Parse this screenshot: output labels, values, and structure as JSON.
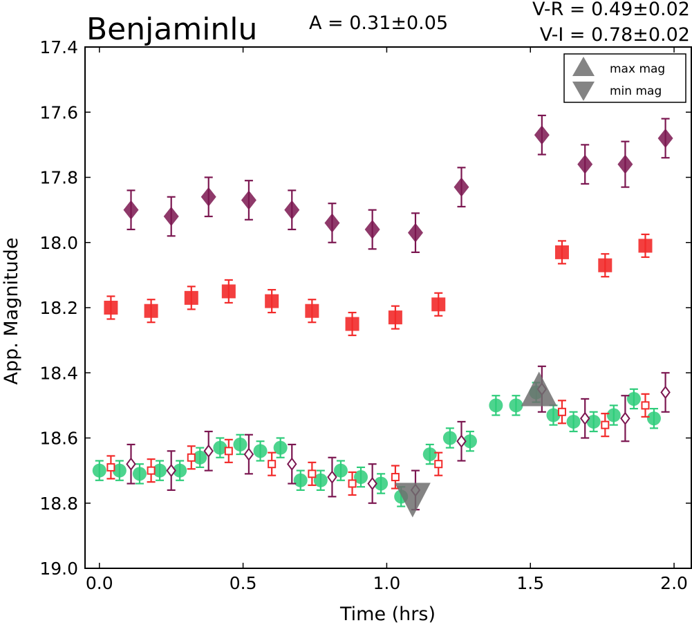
{
  "chart_data": {
    "type": "scatter",
    "title": "Benjaminlu",
    "amplitude_text": "A  = 0.31±0.05",
    "color_index_text": [
      "V-R = 0.49±0.02",
      "V-I  = 0.78±0.02"
    ],
    "xlabel": "Time (hrs)",
    "ylabel": "App. Magnitude",
    "xlim": [
      -0.05,
      2.06
    ],
    "ylim": [
      19.0,
      17.4
    ],
    "y_inverted": true,
    "x_ticks": [
      "0.0",
      "0.5",
      "1.0",
      "1.5",
      "2.0"
    ],
    "y_ticks": [
      "17.4",
      "17.6",
      "17.8",
      "18.0",
      "18.2",
      "18.4",
      "18.6",
      "18.8",
      "19.0"
    ],
    "legend": {
      "position": "top-right",
      "entries": [
        {
          "label": "max mag",
          "marker": "triangle-up"
        },
        {
          "label": "min mag",
          "marker": "triangle-down"
        }
      ]
    },
    "colors": {
      "i_band": "#7b1650",
      "r_band": "#f22a2a",
      "v_band": "#2ecc7a",
      "extrema": "#6e6e6e"
    },
    "series": [
      {
        "marker": "diamond-filled",
        "color": "#7b1650",
        "points": [
          [
            0.11,
            17.9,
            0.06
          ],
          [
            0.25,
            17.92,
            0.06
          ],
          [
            0.38,
            17.86,
            0.06
          ],
          [
            0.52,
            17.87,
            0.06
          ],
          [
            0.67,
            17.9,
            0.06
          ],
          [
            0.81,
            17.94,
            0.06
          ],
          [
            0.95,
            17.96,
            0.06
          ],
          [
            1.1,
            17.97,
            0.06
          ],
          [
            1.26,
            17.83,
            0.06
          ],
          [
            1.54,
            17.67,
            0.06
          ],
          [
            1.69,
            17.76,
            0.06
          ],
          [
            1.83,
            17.76,
            0.07
          ],
          [
            1.97,
            17.68,
            0.06
          ]
        ]
      },
      {
        "marker": "square-filled",
        "color": "#f22a2a",
        "points": [
          [
            0.04,
            18.2,
            0.035
          ],
          [
            0.18,
            18.21,
            0.035
          ],
          [
            0.32,
            18.17,
            0.035
          ],
          [
            0.45,
            18.15,
            0.035
          ],
          [
            0.6,
            18.18,
            0.035
          ],
          [
            0.74,
            18.21,
            0.035
          ],
          [
            0.88,
            18.25,
            0.035
          ],
          [
            1.03,
            18.23,
            0.035
          ],
          [
            1.18,
            18.19,
            0.035
          ],
          [
            1.61,
            18.03,
            0.035
          ],
          [
            1.76,
            18.07,
            0.035
          ],
          [
            1.9,
            18.01,
            0.035
          ]
        ]
      },
      {
        "marker": "circle-filled",
        "color": "#2ecc7a",
        "points": [
          [
            0.0,
            18.7,
            0.03
          ],
          [
            0.07,
            18.7,
            0.03
          ],
          [
            0.14,
            18.71,
            0.03
          ],
          [
            0.21,
            18.7,
            0.03
          ],
          [
            0.28,
            18.7,
            0.03
          ],
          [
            0.35,
            18.66,
            0.03
          ],
          [
            0.42,
            18.63,
            0.03
          ],
          [
            0.49,
            18.62,
            0.03
          ],
          [
            0.56,
            18.64,
            0.03
          ],
          [
            0.63,
            18.63,
            0.03
          ],
          [
            0.7,
            18.73,
            0.03
          ],
          [
            0.77,
            18.73,
            0.03
          ],
          [
            0.84,
            18.7,
            0.03
          ],
          [
            0.91,
            18.72,
            0.03
          ],
          [
            0.98,
            18.74,
            0.03
          ],
          [
            1.05,
            18.78,
            0.03
          ],
          [
            1.15,
            18.65,
            0.03
          ],
          [
            1.22,
            18.6,
            0.03
          ],
          [
            1.29,
            18.61,
            0.03
          ],
          [
            1.38,
            18.5,
            0.03
          ],
          [
            1.45,
            18.5,
            0.03
          ],
          [
            1.52,
            18.46,
            0.03
          ],
          [
            1.58,
            18.53,
            0.03
          ],
          [
            1.65,
            18.55,
            0.03
          ],
          [
            1.72,
            18.55,
            0.03
          ],
          [
            1.79,
            18.53,
            0.03
          ],
          [
            1.86,
            18.48,
            0.03
          ],
          [
            1.93,
            18.54,
            0.03
          ]
        ]
      },
      {
        "marker": "square-open",
        "color": "#f22a2a",
        "points": [
          [
            0.04,
            18.69,
            0.035
          ],
          [
            0.18,
            18.7,
            0.035
          ],
          [
            0.32,
            18.66,
            0.035
          ],
          [
            0.45,
            18.64,
            0.035
          ],
          [
            0.6,
            18.68,
            0.035
          ],
          [
            0.74,
            18.71,
            0.035
          ],
          [
            0.88,
            18.74,
            0.035
          ],
          [
            1.03,
            18.72,
            0.035
          ],
          [
            1.18,
            18.68,
            0.035
          ],
          [
            1.61,
            18.52,
            0.035
          ],
          [
            1.76,
            18.56,
            0.035
          ],
          [
            1.9,
            18.5,
            0.035
          ]
        ]
      },
      {
        "marker": "diamond-open",
        "color": "#7b1650",
        "points": [
          [
            0.11,
            18.68,
            0.06
          ],
          [
            0.25,
            18.7,
            0.06
          ],
          [
            0.38,
            18.64,
            0.06
          ],
          [
            0.52,
            18.65,
            0.06
          ],
          [
            0.67,
            18.68,
            0.06
          ],
          [
            0.81,
            18.72,
            0.06
          ],
          [
            0.95,
            18.74,
            0.06
          ],
          [
            1.1,
            18.76,
            0.06
          ],
          [
            1.26,
            18.61,
            0.06
          ],
          [
            1.54,
            18.45,
            0.07
          ],
          [
            1.69,
            18.54,
            0.06
          ],
          [
            1.83,
            18.54,
            0.07
          ],
          [
            1.97,
            18.46,
            0.06
          ]
        ]
      }
    ],
    "extrema": [
      {
        "kind": "max",
        "x": 1.53,
        "y": 18.46,
        "marker": "triangle-up"
      },
      {
        "kind": "min",
        "x": 1.09,
        "y": 18.78,
        "marker": "triangle-down"
      }
    ]
  }
}
